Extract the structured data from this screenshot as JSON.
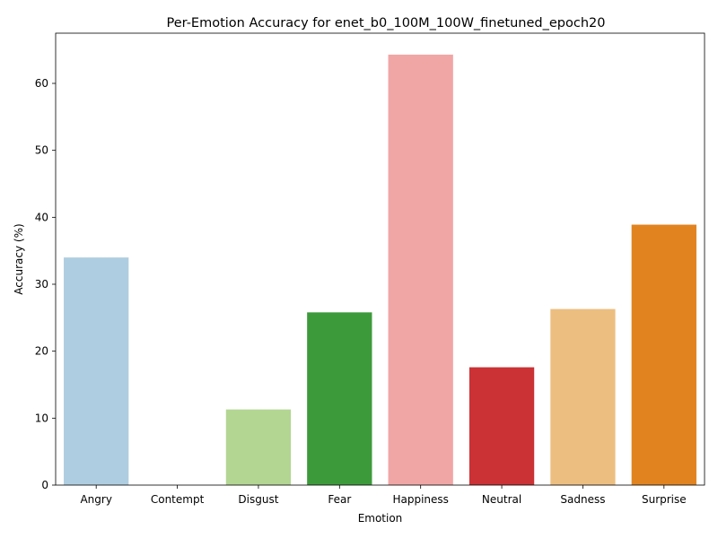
{
  "chart_data": {
    "type": "bar",
    "title": "Per-Emotion Accuracy for enet_b0_100M_100W_finetuned_epoch20",
    "xlabel": "Emotion",
    "ylabel": "Accuracy (%)",
    "ylim": [
      0,
      67.5
    ],
    "yticks": [
      0,
      10,
      20,
      30,
      40,
      50,
      60
    ],
    "grid": false,
    "legend": "none",
    "categories": [
      "Angry",
      "Contempt",
      "Disgust",
      "Fear",
      "Happiness",
      "Neutral",
      "Sadness",
      "Surprise"
    ],
    "values": [
      34.0,
      0.0,
      11.3,
      25.8,
      64.3,
      17.6,
      26.3,
      38.9
    ],
    "colors": [
      "#afcde0",
      "#1f78b4",
      "#b3d692",
      "#3d9a3b",
      "#f0a6a5",
      "#cb3236",
      "#ecbf80",
      "#e1831f"
    ]
  }
}
